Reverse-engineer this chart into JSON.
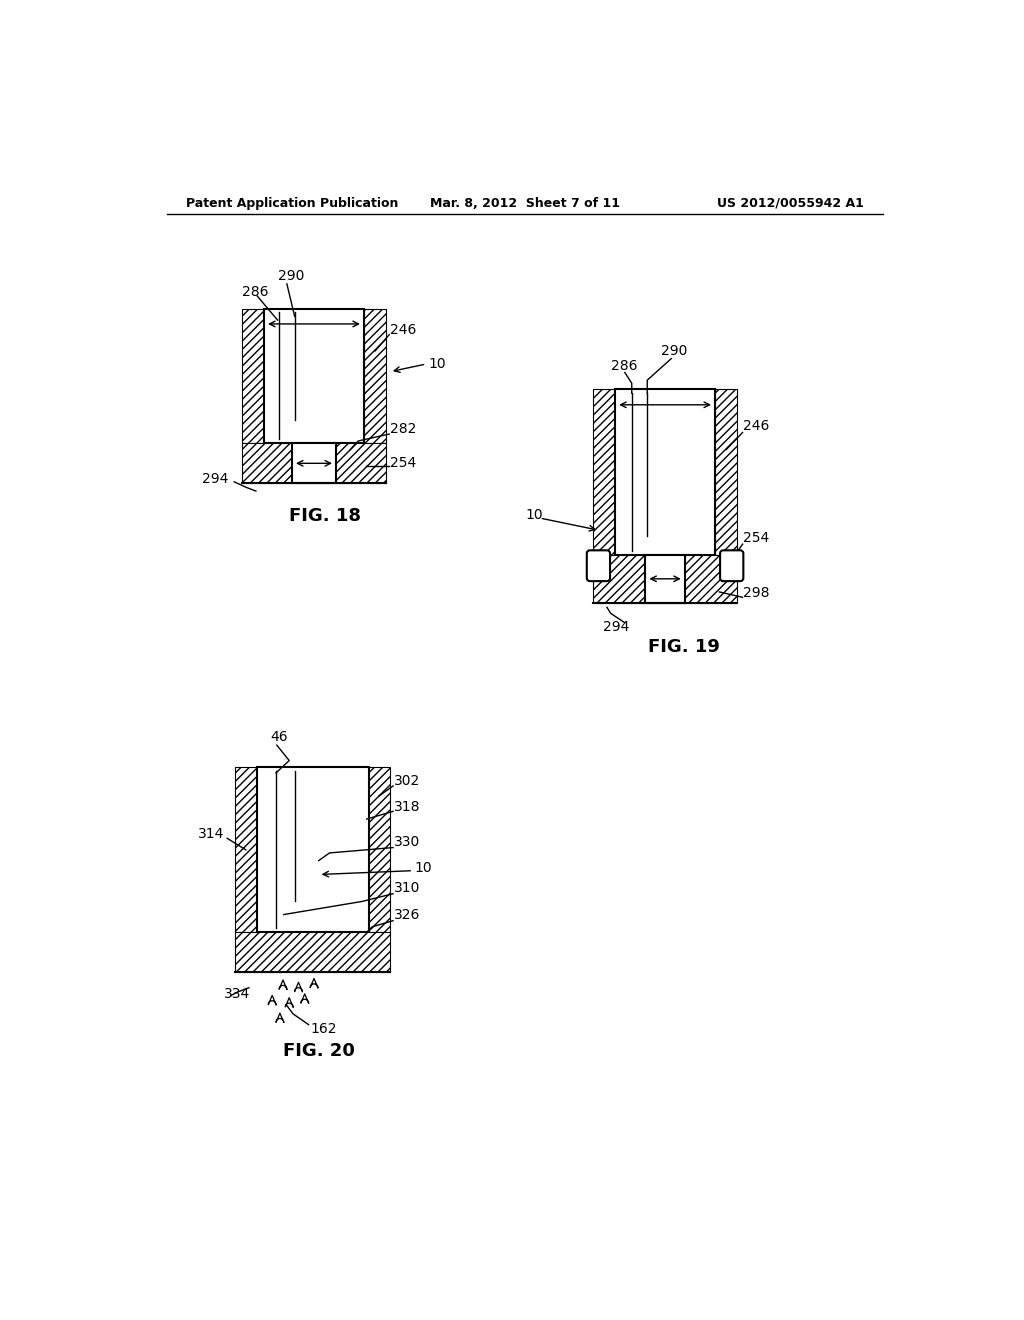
{
  "bg_color": "#ffffff",
  "header_left": "Patent Application Publication",
  "header_mid": "Mar. 8, 2012  Sheet 7 of 11",
  "header_right": "US 2012/0055942 A1",
  "fig18_title": "FIG. 18",
  "fig19_title": "FIG. 19",
  "fig20_title": "FIG. 20"
}
